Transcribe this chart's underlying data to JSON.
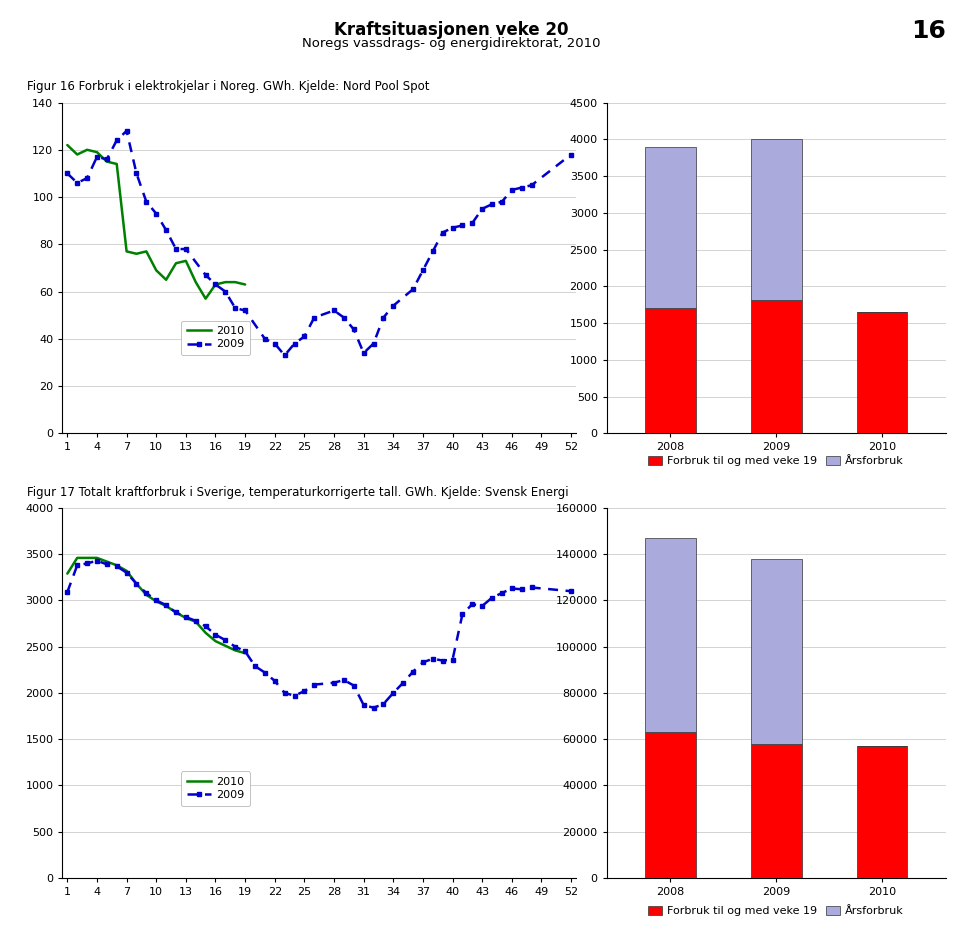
{
  "title": "Kraftsituasjonen veke 20",
  "subtitle": "Noregs vassdrags- og energidirektorat, 2010",
  "page_number": "16",
  "fig16_label": "Figur 16 Forbruk i elektrokjelar i Noreg. GWh. Kjelde: Nord Pool Spot",
  "fig16_ylim": [
    0,
    140
  ],
  "fig16_yticks": [
    0,
    20,
    40,
    60,
    80,
    100,
    120,
    140
  ],
  "fig16_xlim": [
    1,
    52
  ],
  "fig16_xticks": [
    1,
    4,
    7,
    10,
    13,
    16,
    19,
    22,
    25,
    28,
    31,
    34,
    37,
    40,
    43,
    46,
    49,
    52
  ],
  "fig16_2010_x": [
    1,
    2,
    3,
    4,
    5,
    6,
    7,
    8,
    9,
    10,
    11,
    12,
    13,
    14,
    15,
    16,
    17,
    18,
    19
  ],
  "fig16_2010_y": [
    122,
    118,
    120,
    119,
    115,
    114,
    77,
    76,
    77,
    69,
    65,
    72,
    73,
    64,
    57,
    63,
    64,
    64,
    63
  ],
  "fig16_2009_x": [
    1,
    2,
    3,
    4,
    5,
    6,
    7,
    8,
    9,
    10,
    11,
    12,
    13,
    15,
    16,
    17,
    18,
    19,
    21,
    22,
    23,
    24,
    25,
    26,
    28,
    29,
    30,
    31,
    32,
    33,
    34,
    36,
    37,
    38,
    39,
    40,
    41,
    42,
    43,
    44,
    45,
    46,
    47,
    48,
    52
  ],
  "fig16_2009_y": [
    110,
    106,
    108,
    117,
    116,
    124,
    128,
    110,
    98,
    93,
    86,
    78,
    78,
    67,
    63,
    60,
    53,
    52,
    40,
    38,
    33,
    38,
    41,
    49,
    52,
    49,
    44,
    34,
    38,
    49,
    54,
    61,
    69,
    77,
    85,
    87,
    88,
    89,
    95,
    97,
    98,
    103,
    104,
    105,
    118
  ],
  "fig16_bar_years": [
    "2008",
    "2009",
    "2010"
  ],
  "fig16_bar_forbruk": [
    1700,
    1820,
    1650
  ],
  "fig16_bar_total": [
    3900,
    4000,
    1650
  ],
  "fig16_bar_ylim": [
    0,
    4500
  ],
  "fig16_bar_yticks": [
    0,
    500,
    1000,
    1500,
    2000,
    2500,
    3000,
    3500,
    4000,
    4500
  ],
  "fig17_label": "Figur 17 Totalt kraftforbruk i Sverige, temperaturkorrigerte tall. GWh. Kjelde: Svensk Energi",
  "fig17_ylim": [
    0,
    4000
  ],
  "fig17_yticks": [
    0,
    500,
    1000,
    1500,
    2000,
    2500,
    3000,
    3500,
    4000
  ],
  "fig17_xlim": [
    1,
    52
  ],
  "fig17_xticks": [
    1,
    4,
    7,
    10,
    13,
    16,
    19,
    22,
    25,
    28,
    31,
    34,
    37,
    40,
    43,
    46,
    49,
    52
  ],
  "fig17_2010_x": [
    1,
    2,
    3,
    4,
    5,
    6,
    7,
    8,
    9,
    10,
    11,
    12,
    13,
    14,
    15,
    16,
    17,
    18,
    19
  ],
  "fig17_2010_y": [
    3290,
    3460,
    3460,
    3460,
    3420,
    3380,
    3320,
    3180,
    3060,
    2990,
    2940,
    2870,
    2810,
    2770,
    2650,
    2560,
    2510,
    2460,
    2430
  ],
  "fig17_2009_x": [
    1,
    2,
    3,
    4,
    5,
    6,
    7,
    8,
    9,
    10,
    11,
    12,
    13,
    14,
    15,
    16,
    17,
    18,
    19,
    20,
    21,
    22,
    23,
    24,
    25,
    26,
    28,
    29,
    30,
    31,
    32,
    33,
    34,
    35,
    36,
    37,
    38,
    39,
    40,
    41,
    42,
    43,
    44,
    45,
    46,
    47,
    48,
    52
  ],
  "fig17_2009_y": [
    3090,
    3380,
    3400,
    3430,
    3390,
    3370,
    3300,
    3180,
    3080,
    3000,
    2950,
    2870,
    2820,
    2780,
    2720,
    2630,
    2570,
    2500,
    2450,
    2290,
    2220,
    2130,
    2000,
    1970,
    2020,
    2090,
    2110,
    2140,
    2080,
    1870,
    1840,
    1880,
    2000,
    2110,
    2230,
    2330,
    2370,
    2350,
    2360,
    2850,
    2960,
    2940,
    3030,
    3080,
    3130,
    3120,
    3140,
    3100
  ],
  "fig17_bar_years": [
    "2008",
    "2009",
    "2010"
  ],
  "fig17_bar_forbruk": [
    63000,
    58000,
    57000
  ],
  "fig17_bar_total": [
    147000,
    138000,
    57000
  ],
  "fig17_bar_ylim": [
    0,
    160000
  ],
  "fig17_bar_yticks": [
    0,
    20000,
    40000,
    60000,
    80000,
    100000,
    120000,
    140000,
    160000
  ],
  "color_2010": "#008000",
  "color_2009": "#0000CC",
  "color_red": "#FF0000",
  "color_blue_light": "#AAAADD",
  "line_width": 1.8,
  "legend_label_2010": "2010",
  "legend_label_2009": "2009",
  "bar_legend_forbruk": "Forbruk til og med veke 19",
  "bar_legend_arsforbruk": "Årsforbruk"
}
